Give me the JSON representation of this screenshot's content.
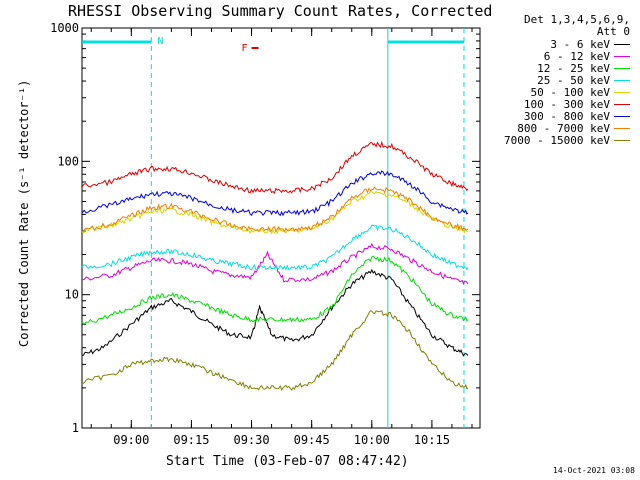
{
  "chart_data": {
    "type": "line",
    "title": "RHESSI Observing Summary Count Rates, Corrected",
    "xlabel": "Start Time (03-Feb-07 08:47:42)",
    "ylabel": "Corrected Count Rate (s⁻¹ detector⁻¹)",
    "ylog": true,
    "ylim": [
      1,
      1000
    ],
    "yticks": [
      {
        "v": 1,
        "label": "1"
      },
      {
        "v": 10,
        "label": "10"
      },
      {
        "v": 100,
        "label": "100"
      },
      {
        "v": 1000,
        "label": "1000"
      }
    ],
    "xlim": [
      "08:47:42",
      "10:27:00"
    ],
    "xticks": [
      {
        "t": "09:00",
        "label": "09:00"
      },
      {
        "t": "09:15",
        "label": "09:15"
      },
      {
        "t": "09:30",
        "label": "09:30"
      },
      {
        "t": "09:45",
        "label": "09:45"
      },
      {
        "t": "10:00",
        "label": "10:00"
      },
      {
        "t": "10:15",
        "label": "10:15"
      }
    ],
    "legend": {
      "header": [
        "Det 1,3,4,5,6,9,",
        "Att 0"
      ],
      "position": "right"
    },
    "series": [
      {
        "name": "3 - 6 keV",
        "color": "#000000",
        "x": [
          "08:47:42",
          "08:53",
          "09:00",
          "09:05",
          "09:10",
          "09:15",
          "09:20",
          "09:25",
          "09:30",
          "09:32",
          "09:35",
          "09:40",
          "09:45",
          "09:50",
          "09:55",
          "10:00",
          "10:05",
          "10:10",
          "10:15",
          "10:20",
          "10:24"
        ],
        "y": [
          3.5,
          4,
          6,
          8,
          9,
          7.5,
          6,
          5,
          4.8,
          8,
          5,
          4.5,
          5,
          8,
          12,
          15,
          13,
          8,
          5,
          4,
          3.5
        ]
      },
      {
        "name": "6 - 12 keV",
        "color": "#e000e0",
        "x": [
          "08:47:42",
          "08:55",
          "09:00",
          "09:05",
          "09:10",
          "09:15",
          "09:20",
          "09:25",
          "09:30",
          "09:34",
          "09:38",
          "09:45",
          "09:50",
          "09:55",
          "10:00",
          "10:05",
          "10:10",
          "10:15",
          "10:20",
          "10:24"
        ],
        "y": [
          13,
          14,
          16,
          18,
          18,
          17,
          15,
          14,
          13.5,
          20,
          13,
          13,
          15,
          19,
          23,
          22,
          18,
          15,
          13,
          12
        ]
      },
      {
        "name": "12 - 25 keV",
        "color": "#00e000",
        "x": [
          "08:47:42",
          "08:55",
          "09:00",
          "09:05",
          "09:10",
          "09:15",
          "09:20",
          "09:25",
          "09:30",
          "09:35",
          "09:40",
          "09:45",
          "09:50",
          "09:55",
          "10:00",
          "10:05",
          "10:10",
          "10:15",
          "10:20",
          "10:24"
        ],
        "y": [
          6,
          7,
          8,
          9.5,
          10,
          9,
          8,
          7,
          6.5,
          6.5,
          6.5,
          6.5,
          8,
          14,
          19,
          18,
          13,
          8.5,
          7,
          6.5
        ]
      },
      {
        "name": "25 - 50 keV",
        "color": "#00e0e0",
        "x": [
          "08:47:42",
          "08:55",
          "09:00",
          "09:05",
          "09:10",
          "09:15",
          "09:20",
          "09:25",
          "09:30",
          "09:35",
          "09:40",
          "09:45",
          "09:50",
          "09:55",
          "10:00",
          "10:05",
          "10:10",
          "10:15",
          "10:20",
          "10:24"
        ],
        "y": [
          16,
          17,
          19,
          21,
          21,
          20,
          18,
          17,
          16,
          16,
          16,
          16,
          19,
          26,
          32,
          31,
          26,
          20,
          17,
          16
        ]
      },
      {
        "name": "50 - 100 keV",
        "color": "#d8d800",
        "x": [
          "08:47:42",
          "08:55",
          "09:00",
          "09:05",
          "09:10",
          "09:15",
          "09:20",
          "09:25",
          "09:30",
          "09:35",
          "09:40",
          "09:45",
          "09:50",
          "09:55",
          "10:00",
          "10:05",
          "10:10",
          "10:15",
          "10:20",
          "10:24"
        ],
        "y": [
          30,
          33,
          37,
          42,
          43,
          40,
          35,
          32,
          30,
          30,
          30,
          31,
          37,
          50,
          58,
          56,
          47,
          37,
          32,
          30
        ]
      },
      {
        "name": "100 - 300 keV",
        "color": "#e00000",
        "x": [
          "08:47:42",
          "08:55",
          "09:00",
          "09:05",
          "09:10",
          "09:15",
          "09:20",
          "09:25",
          "09:30",
          "09:35",
          "09:40",
          "09:45",
          "09:50",
          "09:55",
          "10:00",
          "10:05",
          "10:10",
          "10:15",
          "10:20",
          "10:24"
        ],
        "y": [
          65,
          70,
          80,
          88,
          88,
          82,
          72,
          65,
          60,
          60,
          60,
          62,
          75,
          110,
          135,
          130,
          105,
          80,
          68,
          62
        ]
      },
      {
        "name": "300 - 800 keV",
        "color": "#0000e0",
        "x": [
          "08:47:42",
          "08:55",
          "09:00",
          "09:05",
          "09:10",
          "09:15",
          "09:20",
          "09:25",
          "09:30",
          "09:35",
          "09:40",
          "09:45",
          "09:50",
          "09:55",
          "10:00",
          "10:05",
          "10:10",
          "10:15",
          "10:20",
          "10:24"
        ],
        "y": [
          42,
          47,
          52,
          57,
          57,
          53,
          47,
          43,
          41,
          41,
          41,
          42,
          50,
          68,
          82,
          80,
          66,
          50,
          44,
          41
        ]
      },
      {
        "name": "800 - 7000 keV",
        "color": "#f08000",
        "x": [
          "08:47:42",
          "08:55",
          "09:00",
          "09:05",
          "09:10",
          "09:15",
          "09:20",
          "09:25",
          "09:30",
          "09:35",
          "09:40",
          "09:45",
          "09:50",
          "09:55",
          "10:00",
          "10:05",
          "10:10",
          "10:15",
          "10:20",
          "10:24"
        ],
        "y": [
          30,
          34,
          39,
          45,
          46,
          42,
          37,
          33,
          31,
          31,
          31,
          32,
          38,
          53,
          63,
          60,
          50,
          38,
          33,
          31
        ]
      },
      {
        "name": "7000 - 15000 keV",
        "color": "#808000",
        "x": [
          "08:47:42",
          "08:55",
          "09:00",
          "09:05",
          "09:10",
          "09:15",
          "09:20",
          "09:25",
          "09:30",
          "09:35",
          "09:40",
          "09:45",
          "09:50",
          "09:55",
          "10:00",
          "10:05",
          "10:10",
          "10:15",
          "10:20",
          "10:24"
        ],
        "y": [
          2.2,
          2.5,
          3,
          3.2,
          3.3,
          3,
          2.6,
          2.3,
          2,
          2,
          2,
          2.2,
          3,
          5,
          7.5,
          7,
          5,
          3,
          2.2,
          2
        ]
      }
    ],
    "annotations": [
      {
        "label": "N",
        "color": "#00e0e0"
      },
      {
        "label": "F",
        "color": "#e00000"
      }
    ],
    "footer": "14-Oct-2021 03:08"
  }
}
